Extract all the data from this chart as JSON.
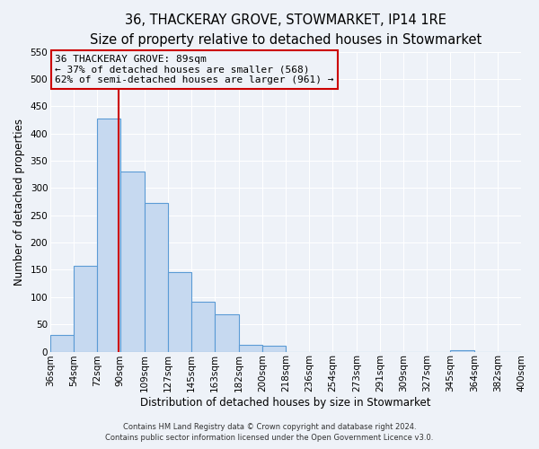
{
  "title": "36, THACKERAY GROVE, STOWMARKET, IP14 1RE",
  "subtitle": "Size of property relative to detached houses in Stowmarket",
  "bar_heights": [
    30,
    157,
    428,
    330,
    273,
    145,
    91,
    68,
    13,
    10,
    0,
    0,
    0,
    0,
    0,
    0,
    0,
    3,
    0,
    0
  ],
  "bin_edges": [
    36,
    54,
    72,
    90,
    109,
    127,
    145,
    163,
    182,
    200,
    218,
    236,
    254,
    273,
    291,
    309,
    327,
    345,
    364,
    382,
    400
  ],
  "bar_color": "#c6d9f0",
  "bar_edge_color": "#5b9bd5",
  "vline_x": 89,
  "vline_color": "#cc0000",
  "ylim": [
    0,
    550
  ],
  "yticks": [
    0,
    50,
    100,
    150,
    200,
    250,
    300,
    350,
    400,
    450,
    500,
    550
  ],
  "ylabel": "Number of detached properties",
  "xlabel": "Distribution of detached houses by size in Stowmarket",
  "annotation_title": "36 THACKERAY GROVE: 89sqm",
  "annotation_line1": "← 37% of detached houses are smaller (568)",
  "annotation_line2": "62% of semi-detached houses are larger (961) →",
  "footer_line1": "Contains HM Land Registry data © Crown copyright and database right 2024.",
  "footer_line2": "Contains public sector information licensed under the Open Government Licence v3.0.",
  "background_color": "#eef2f8",
  "grid_color": "#ffffff",
  "title_fontsize": 10.5,
  "subtitle_fontsize": 9.5,
  "axis_label_fontsize": 8.5,
  "tick_fontsize": 7.5,
  "annotation_box_edge_color": "#cc0000",
  "annotation_fontsize": 8,
  "footer_fontsize": 6.0
}
